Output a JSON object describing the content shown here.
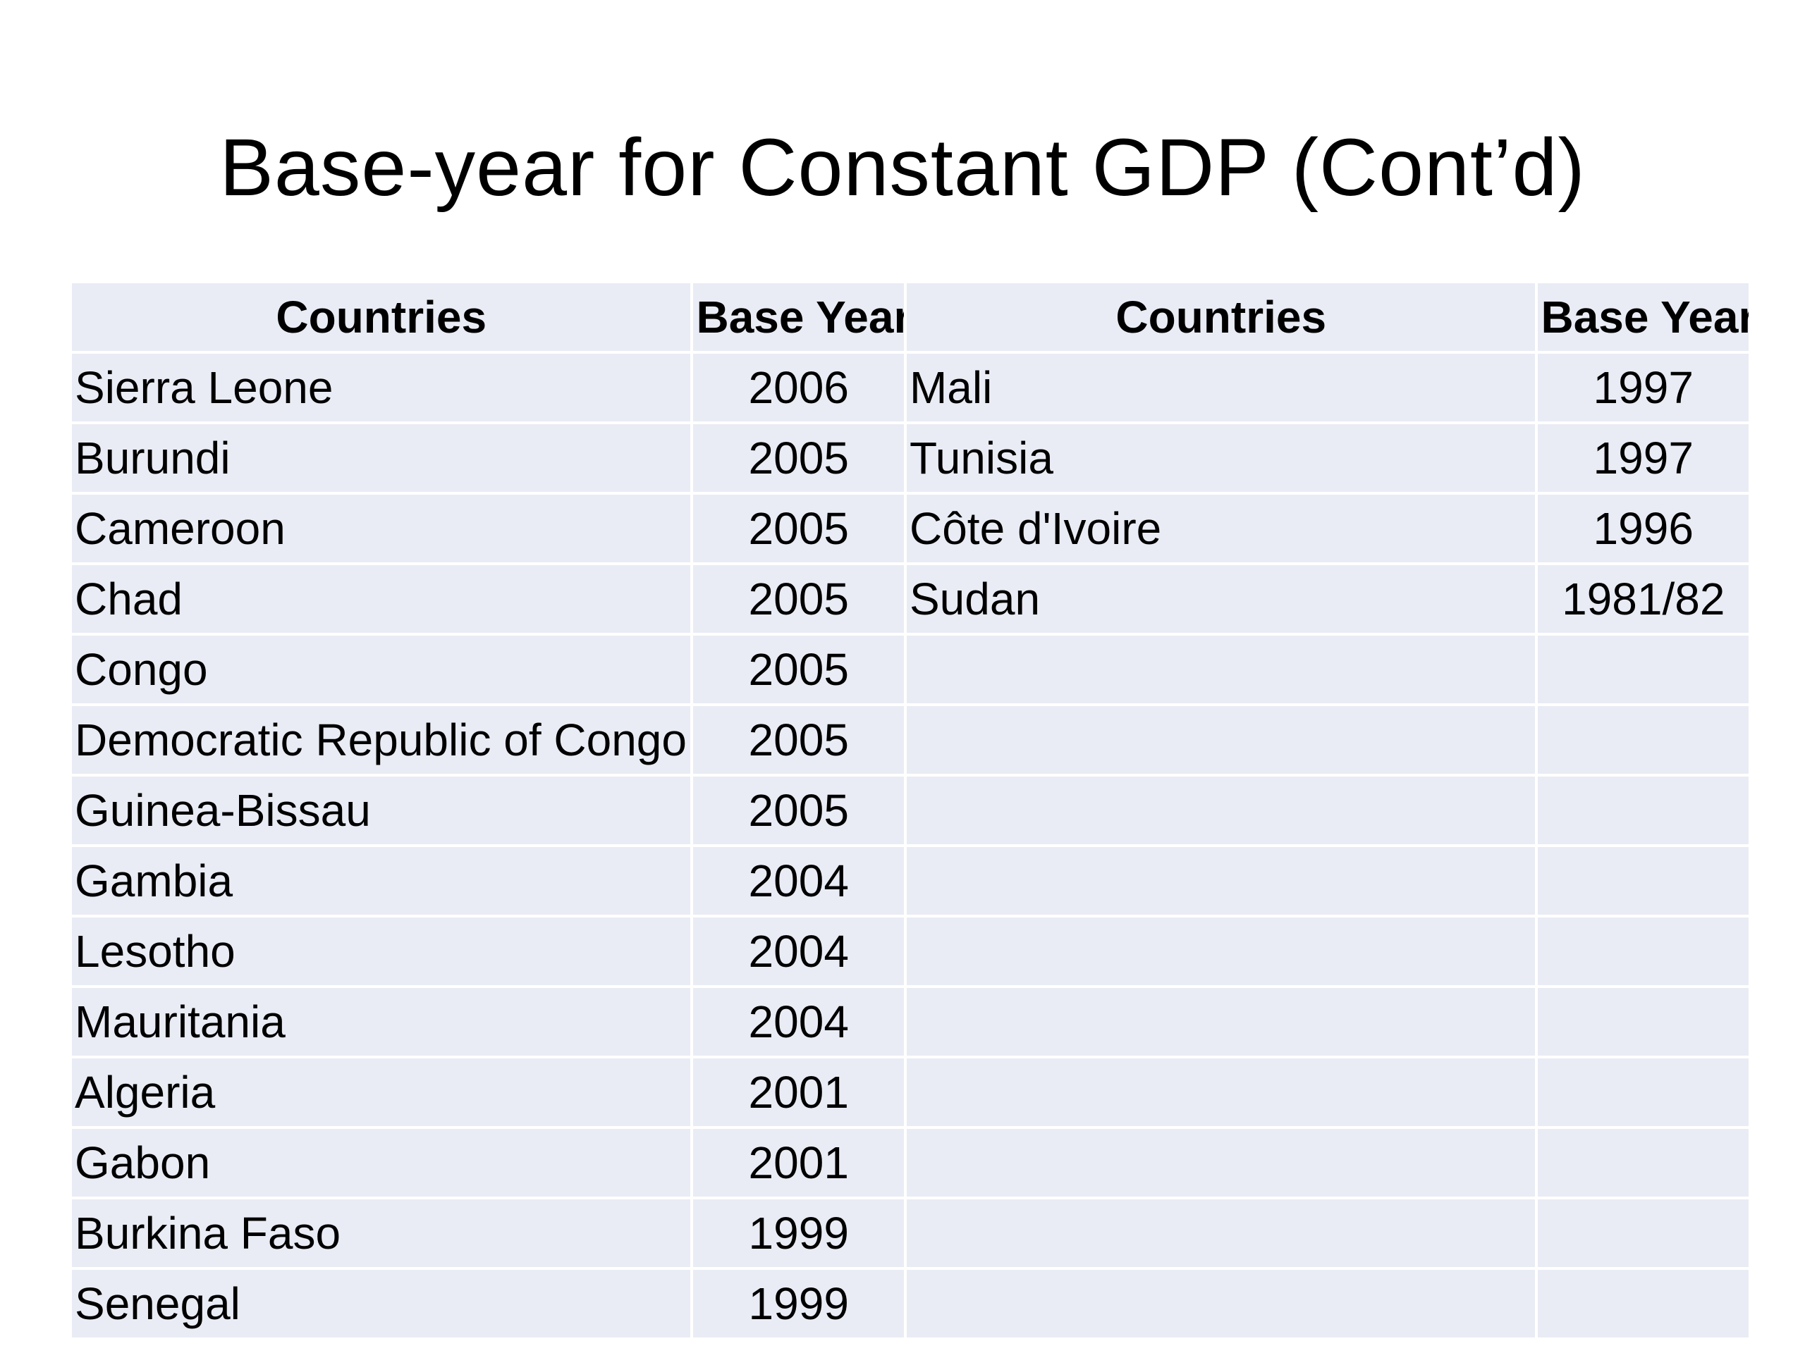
{
  "title": "Base-year for Constant GDP (Cont’d)",
  "table": {
    "headers": [
      "Countries",
      "Base Year",
      "Countries",
      "Base Year"
    ],
    "left": [
      {
        "country": "Sierra Leone",
        "year": "2006"
      },
      {
        "country": "Burundi",
        "year": "2005"
      },
      {
        "country": "Cameroon",
        "year": "2005"
      },
      {
        "country": "Chad",
        "year": "2005"
      },
      {
        "country": "Congo",
        "year": "2005"
      },
      {
        "country": "Democratic Republic of Congo",
        "year": "2005"
      },
      {
        "country": "Guinea-Bissau",
        "year": "2005"
      },
      {
        "country": "Gambia",
        "year": "2004"
      },
      {
        "country": "Lesotho",
        "year": "2004"
      },
      {
        "country": "Mauritania",
        "year": "2004"
      },
      {
        "country": "Algeria",
        "year": "2001"
      },
      {
        "country": "Gabon",
        "year": "2001"
      },
      {
        "country": "Burkina Faso",
        "year": "1999"
      },
      {
        "country": "Senegal",
        "year": "1999"
      }
    ],
    "right": [
      {
        "country": "Mali",
        "year": "1997"
      },
      {
        "country": "Tunisia",
        "year": "1997"
      },
      {
        "country": "Côte d'Ivoire",
        "year": "1996"
      },
      {
        "country": "Sudan",
        "year": "1981/82"
      }
    ]
  },
  "colors": {
    "cell_background": "#e9ecf4",
    "text": "#000000",
    "page_background": "#ffffff"
  }
}
